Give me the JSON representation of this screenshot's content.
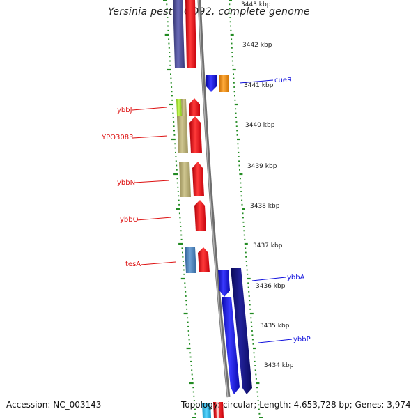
{
  "title": "Yersinia pestis CO92, complete genome",
  "accession_text": "Accession: NC_003143",
  "summary_text": "Topology: circular; Length: 4,653,728 bp; Genes: 3,974",
  "scale_labels": [
    "3443 kbp",
    "3442 kbp",
    "3441 kbp",
    "3440 kbp",
    "3439 kbp",
    "3438 kbp",
    "3437 kbp",
    "3436 kbp",
    "3435 kbp",
    "3434 kbp"
  ],
  "genes_reverse": [
    {
      "name": "ybbJ",
      "color": "#dd1111"
    },
    {
      "name": "YPO3083",
      "color": "#dd1111"
    },
    {
      "name": "ybbN",
      "color": "#dd1111"
    },
    {
      "name": "ybbO",
      "color": "#dd1111"
    },
    {
      "name": "tesA",
      "color": "#dd1111"
    }
  ],
  "genes_forward": [
    {
      "name": "cueR",
      "color": "#1111dd"
    },
    {
      "name": "ybbA",
      "color": "#1111dd"
    },
    {
      "name": "ybbP",
      "color": "#1111dd"
    }
  ],
  "colors": {
    "reverse_strand": "#e8141c",
    "forward_strand": "#1a1ae8",
    "forward_dark": "#14147a",
    "cog_purple": "#4a4a9a",
    "cog_tan": "#b7ad74",
    "cog_green": "#a6e42a",
    "cog_steel": "#4a7fb8",
    "cog_orange": "#f08a0a",
    "cog_cyan": "#22bde8",
    "backbone": "#777777",
    "ticks": "#228b22"
  }
}
